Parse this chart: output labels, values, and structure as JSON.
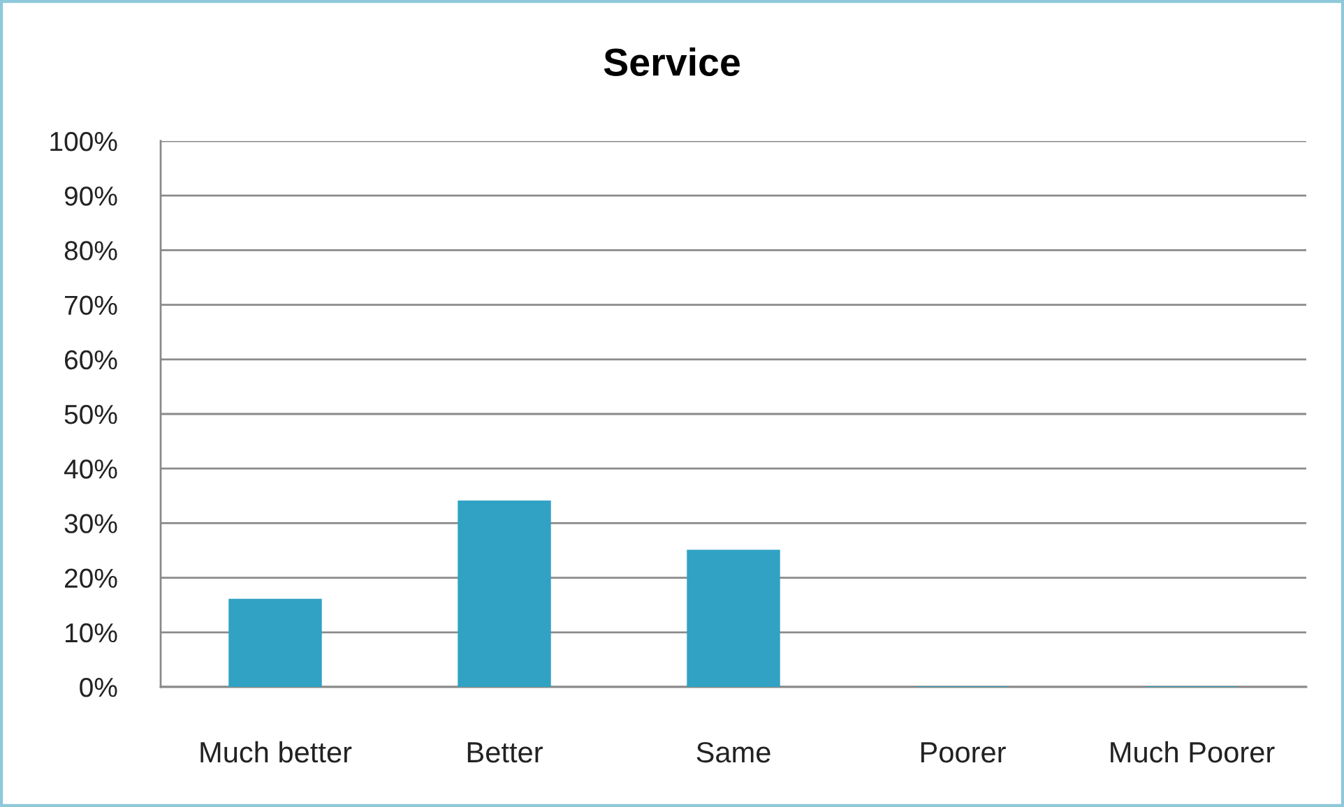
{
  "chart_data": {
    "type": "bar",
    "title": "Service",
    "categories": [
      "Much better",
      "Better",
      "Same",
      "Poorer",
      "Much Poorer"
    ],
    "values": [
      16,
      34,
      25,
      0,
      0
    ],
    "color": "#31a2c3",
    "ylim": [
      0,
      100
    ],
    "yticks": [
      {
        "value": 0,
        "label": "0%"
      },
      {
        "value": 10,
        "label": "10%"
      },
      {
        "value": 20,
        "label": "20%"
      },
      {
        "value": 30,
        "label": "30%"
      },
      {
        "value": 40,
        "label": "40%"
      },
      {
        "value": 50,
        "label": "50%"
      },
      {
        "value": 60,
        "label": "60%"
      },
      {
        "value": 70,
        "label": "70%"
      },
      {
        "value": 80,
        "label": "80%"
      },
      {
        "value": 90,
        "label": "90%"
      },
      {
        "value": 100,
        "label": "100%"
      }
    ],
    "grid": "y"
  }
}
